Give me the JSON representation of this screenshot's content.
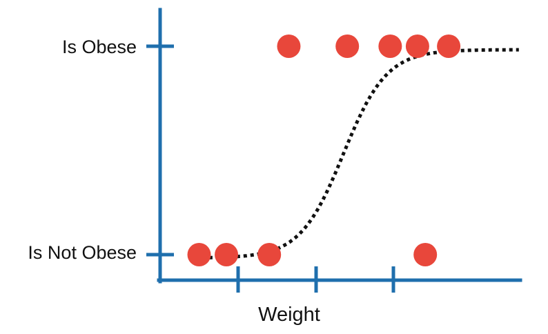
{
  "chart_data": {
    "type": "scatter",
    "title": "",
    "xlabel": "Weight",
    "ylabel": "",
    "y_categories": [
      "Is Not Obese",
      "Is Obese"
    ],
    "x_ticks_labeled": [],
    "grid": false,
    "legend": "none",
    "series": [
      {
        "kind": "points",
        "x": [
          0.5,
          0.85,
          1.4,
          3.4,
          1.65,
          2.4,
          2.95,
          3.3,
          3.7
        ],
        "y": [
          0,
          0,
          0,
          0,
          1,
          1,
          1,
          1,
          1
        ]
      },
      {
        "kind": "logistic-curve",
        "midpoint": 2.35,
        "steepness": 3.6,
        "x_range": [
          0.45,
          4.6
        ]
      }
    ],
    "colors": {
      "axis": "#1f6fad",
      "points": "#e8473b",
      "curve": "#111111"
    }
  }
}
